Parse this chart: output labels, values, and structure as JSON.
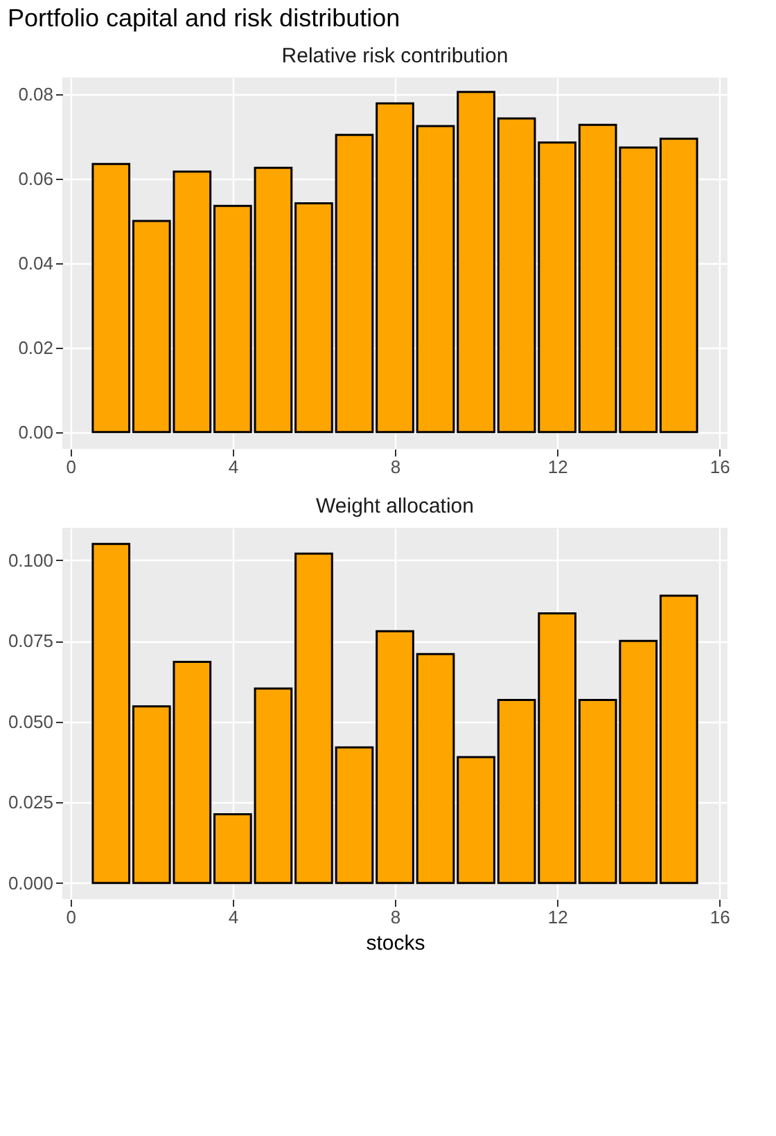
{
  "chart_data": [
    {
      "type": "bar",
      "title": "Portfolio capital and risk distribution",
      "subtitle": "Relative risk contribution",
      "x": [
        1,
        2,
        3,
        4,
        5,
        6,
        7,
        8,
        9,
        10,
        11,
        12,
        13,
        14,
        15
      ],
      "values": [
        0.0635,
        0.05,
        0.0617,
        0.0536,
        0.0626,
        0.0542,
        0.0704,
        0.0779,
        0.0725,
        0.0806,
        0.0743,
        0.0686,
        0.0728,
        0.0674,
        0.0695
      ],
      "color": "#ffa500",
      "xlim": [
        -0.2,
        16.2
      ],
      "xticks": [
        0,
        4,
        8,
        12,
        16
      ],
      "ylim": [
        -0.004,
        0.084
      ],
      "yticks": [
        {
          "value": 0,
          "label": "0.00"
        },
        {
          "value": 0.02,
          "label": "0.02"
        },
        {
          "value": 0.04,
          "label": "0.04"
        },
        {
          "value": 0.06,
          "label": "0.06"
        },
        {
          "value": 0.08,
          "label": "0.08"
        }
      ],
      "grid": true
    },
    {
      "type": "bar",
      "subtitle": "Weight allocation",
      "xlabel": "stocks",
      "x": [
        1,
        2,
        3,
        4,
        5,
        6,
        7,
        8,
        9,
        10,
        11,
        12,
        13,
        14,
        15
      ],
      "values": [
        0.105,
        0.0547,
        0.0685,
        0.0213,
        0.0602,
        0.102,
        0.042,
        0.078,
        0.0709,
        0.039,
        0.0567,
        0.0835,
        0.0567,
        0.075,
        0.089
      ],
      "color": "#ffa500",
      "xlim": [
        -0.2,
        16.2
      ],
      "xticks": [
        0,
        4,
        8,
        12,
        16
      ],
      "ylim": [
        -0.005,
        0.11
      ],
      "yticks": [
        {
          "value": 0,
          "label": "0.000"
        },
        {
          "value": 0.025,
          "label": "0.025"
        },
        {
          "value": 0.05,
          "label": "0.050"
        },
        {
          "value": 0.075,
          "label": "0.075"
        },
        {
          "value": 0.1,
          "label": "0.100"
        }
      ],
      "grid": true
    }
  ]
}
